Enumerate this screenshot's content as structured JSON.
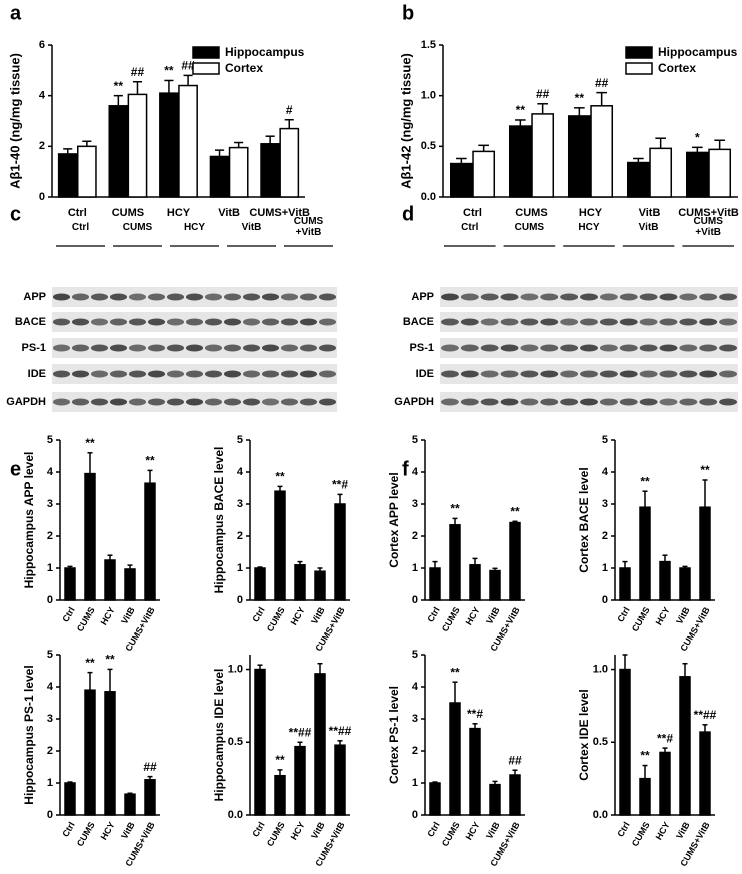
{
  "chart_data": [
    {
      "type": "bar",
      "panel": "a",
      "ylabel": "Aβ1-40 (ng/mg tissue)",
      "categories": [
        "Ctrl",
        "CUMS",
        "HCY",
        "VitB",
        "CUMS+VitB"
      ],
      "ylim": [
        0,
        6
      ],
      "yticks": [
        0,
        2,
        4,
        6
      ],
      "legend": "upper right",
      "series": [
        {
          "name": "Hippocampus",
          "color": "#000000",
          "values": [
            1.7,
            3.6,
            4.1,
            1.6,
            2.1
          ],
          "errors": [
            0.2,
            0.4,
            0.5,
            0.25,
            0.3
          ],
          "annotations": [
            null,
            "**",
            "**",
            null,
            null
          ]
        },
        {
          "name": "Cortex",
          "color": "#ffffff",
          "values": [
            2.0,
            4.05,
            4.4,
            1.95,
            2.7
          ],
          "errors": [
            0.2,
            0.5,
            0.4,
            0.2,
            0.35
          ],
          "annotations": [
            null,
            "##",
            "##",
            null,
            "#"
          ]
        }
      ]
    },
    {
      "type": "bar",
      "panel": "b",
      "ylabel": "Aβ1-42 (ng/mg tissue)",
      "categories": [
        "Ctrl",
        "CUMS",
        "HCY",
        "VitB",
        "CUMS+VitB"
      ],
      "ylim": [
        0,
        1.5
      ],
      "yticks": [
        {
          "value": 0,
          "label": "0.0"
        },
        0.5,
        {
          "value": 1,
          "label": "1.0"
        },
        1.5
      ],
      "legend": "upper right",
      "series": [
        {
          "name": "Hippocampus",
          "color": "#000000",
          "values": [
            0.33,
            0.7,
            0.8,
            0.34,
            0.44
          ],
          "errors": [
            0.05,
            0.06,
            0.08,
            0.04,
            0.05
          ],
          "annotations": [
            null,
            "**",
            "**",
            null,
            "*"
          ]
        },
        {
          "name": "Cortex",
          "color": "#ffffff",
          "values": [
            0.45,
            0.82,
            0.9,
            0.48,
            0.47
          ],
          "errors": [
            0.06,
            0.1,
            0.13,
            0.1,
            0.09
          ],
          "annotations": [
            null,
            "##",
            "##",
            null,
            null
          ]
        }
      ]
    },
    {
      "type": "bar",
      "panel": "e",
      "ylabel": "Hippocampus APP level",
      "categories": [
        "Ctrl",
        "CUMS",
        "HCY",
        "VitB",
        "CUMS+VitB"
      ],
      "ylim": [
        0,
        5
      ],
      "yticks": [
        0,
        1,
        2,
        3,
        4,
        5
      ],
      "series": [
        {
          "color": "#000000",
          "values": [
            1.0,
            3.95,
            1.25,
            0.97,
            3.65
          ],
          "errors": [
            0.05,
            0.65,
            0.15,
            0.12,
            0.4
          ],
          "annotations": [
            null,
            "**",
            null,
            null,
            "**"
          ]
        }
      ]
    },
    {
      "type": "bar",
      "ylabel": "Hippocampus BACE level",
      "categories": [
        "Ctrl",
        "CUMS",
        "HCY",
        "VitB",
        "CUMS+VitB"
      ],
      "ylim": [
        0,
        5
      ],
      "yticks": [
        0,
        1,
        2,
        3,
        4,
        5
      ],
      "series": [
        {
          "color": "#000000",
          "values": [
            1.0,
            3.4,
            1.1,
            0.9,
            3.0
          ],
          "errors": [
            0.03,
            0.15,
            0.1,
            0.1,
            0.3
          ],
          "annotations": [
            null,
            "**",
            null,
            null,
            "**#"
          ]
        }
      ]
    },
    {
      "type": "bar",
      "ylabel": "Hippocampus PS-1 level",
      "categories": [
        "Ctrl",
        "CUMS",
        "HCY",
        "VitB",
        "CUMS+VitB"
      ],
      "ylim": [
        0,
        5
      ],
      "yticks": [
        0,
        1,
        2,
        3,
        4,
        5
      ],
      "series": [
        {
          "color": "#000000",
          "values": [
            1.0,
            3.9,
            3.85,
            0.65,
            1.1
          ],
          "errors": [
            0.03,
            0.55,
            0.7,
            0.03,
            0.1
          ],
          "annotations": [
            null,
            "**",
            "**",
            null,
            "##"
          ]
        }
      ]
    },
    {
      "type": "bar",
      "ylabel": "Hippocampus IDE level",
      "categories": [
        "Ctrl",
        "CUMS",
        "HCY",
        "VitB",
        "CUMS+VitB"
      ],
      "ylim": [
        0,
        1.1
      ],
      "yticks": [
        {
          "value": 0,
          "label": "0.0"
        },
        0.5,
        {
          "value": 1,
          "label": "1.0"
        }
      ],
      "series": [
        {
          "color": "#000000",
          "values": [
            1.0,
            0.27,
            0.47,
            0.97,
            0.48
          ],
          "errors": [
            0.03,
            0.04,
            0.03,
            0.07,
            0.03
          ],
          "annotations": [
            null,
            "**",
            "**##",
            null,
            "**##"
          ]
        }
      ]
    },
    {
      "type": "bar",
      "panel": "f",
      "ylabel": "Cortex APP level",
      "categories": [
        "Ctrl",
        "CUMS",
        "HCY",
        "VitB",
        "CUMS+VitB"
      ],
      "ylim": [
        0,
        5
      ],
      "yticks": [
        0,
        1,
        2,
        3,
        4,
        5
      ],
      "series": [
        {
          "color": "#000000",
          "values": [
            1.0,
            2.35,
            1.1,
            0.92,
            2.42
          ],
          "errors": [
            0.2,
            0.2,
            0.2,
            0.07,
            0.04
          ],
          "annotations": [
            null,
            "**",
            null,
            null,
            "**"
          ]
        }
      ]
    },
    {
      "type": "bar",
      "ylabel": "Cortex BACE level",
      "categories": [
        "Ctrl",
        "CUMS",
        "HCY",
        "VitB",
        "CUMS+VitB"
      ],
      "ylim": [
        0,
        5
      ],
      "yticks": [
        0,
        1,
        2,
        3,
        4,
        5
      ],
      "series": [
        {
          "color": "#000000",
          "values": [
            1.0,
            2.9,
            1.2,
            1.0,
            2.9
          ],
          "errors": [
            0.2,
            0.5,
            0.2,
            0.05,
            0.85
          ],
          "annotations": [
            null,
            "**",
            null,
            null,
            "**"
          ]
        }
      ]
    },
    {
      "type": "bar",
      "ylabel": "Cortex PS-1 level",
      "categories": [
        "Ctrl",
        "CUMS",
        "HCY",
        "VitB",
        "CUMS+VitB"
      ],
      "ylim": [
        0,
        5
      ],
      "yticks": [
        0,
        1,
        2,
        3,
        4,
        5
      ],
      "series": [
        {
          "color": "#000000",
          "values": [
            1.0,
            3.5,
            2.7,
            0.95,
            1.25
          ],
          "errors": [
            0.03,
            0.65,
            0.15,
            0.1,
            0.15
          ],
          "annotations": [
            null,
            "**",
            "**#",
            null,
            "##"
          ]
        }
      ]
    },
    {
      "type": "bar",
      "ylabel": "Cortex IDE level",
      "categories": [
        "Ctrl",
        "CUMS",
        "HCY",
        "VitB",
        "CUMS+VitB"
      ],
      "ylim": [
        0,
        1.1
      ],
      "yticks": [
        {
          "value": 0,
          "label": "0.0"
        },
        0.5,
        {
          "value": 1,
          "label": "1.0"
        }
      ],
      "series": [
        {
          "color": "#000000",
          "values": [
            1.0,
            0.25,
            0.43,
            0.95,
            0.57
          ],
          "errors": [
            0.1,
            0.09,
            0.03,
            0.09,
            0.05
          ],
          "annotations": [
            null,
            "**",
            "**#",
            null,
            "**##"
          ]
        }
      ]
    }
  ],
  "blots": [
    {
      "panel": "c",
      "groups": [
        "Ctrl",
        "CUMS",
        "HCY",
        "VitB",
        "CUMS\n+VitB"
      ],
      "rows": [
        "APP",
        "BACE",
        "PS-1",
        "IDE",
        "GAPDH"
      ]
    },
    {
      "panel": "d",
      "groups": [
        "Ctrl",
        "CUMS",
        "HCY",
        "VitB",
        "CUMS\n+VitB"
      ],
      "rows": [
        "APP",
        "BACE",
        "PS-1",
        "IDE",
        "GAPDH"
      ]
    }
  ]
}
